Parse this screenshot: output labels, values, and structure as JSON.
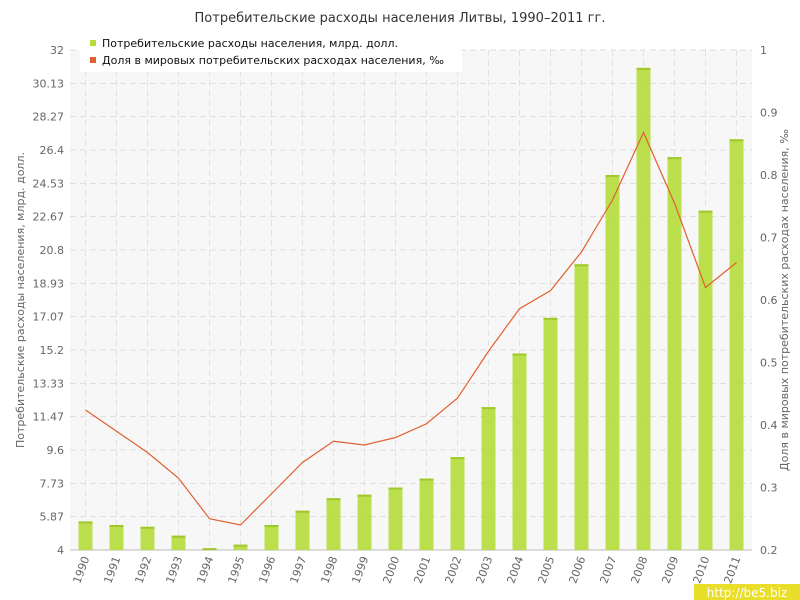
{
  "chart_data": {
    "type": "bar+line",
    "title": "Потребительские расходы населения Литвы, 1990–2011 гг.",
    "categories": [
      "1990",
      "1991",
      "1992",
      "1993",
      "1994",
      "1995",
      "1996",
      "1997",
      "1998",
      "1999",
      "2000",
      "2001",
      "2002",
      "2003",
      "2004",
      "2005",
      "2006",
      "2007",
      "2008",
      "2009",
      "2010",
      "2011"
    ],
    "series": [
      {
        "name": "Потребительские расходы населения, млрд. долл.",
        "kind": "bar",
        "axis": "left",
        "color": "#b5dc3a",
        "values": [
          5.6,
          5.4,
          5.3,
          4.8,
          4.1,
          4.3,
          5.4,
          6.2,
          6.9,
          7.1,
          7.5,
          8.0,
          9.2,
          12.0,
          15.0,
          17.0,
          20.0,
          25.0,
          31.0,
          26.0,
          23.0,
          27.0
        ]
      },
      {
        "name": "Доля в мировых потребительских расходах населения, ‰",
        "kind": "line",
        "axis": "right",
        "color": "#e06030",
        "values": [
          0.424,
          0.39,
          0.356,
          0.315,
          0.25,
          0.24,
          0.29,
          0.34,
          0.374,
          0.368,
          0.38,
          0.402,
          0.443,
          0.518,
          0.586,
          0.615,
          0.677,
          0.76,
          0.868,
          0.755,
          0.62,
          0.66
        ]
      }
    ],
    "ylabel": "Потребительские расходы населения, млрд. долл.",
    "y2label": "Доля в мировых потребительских расходах населения, ‰",
    "ylim": [
      4,
      32
    ],
    "y2lim": [
      0.2,
      1
    ],
    "yticks": [
      "4",
      "5.87",
      "7.73",
      "9.6",
      "11.47",
      "13.33",
      "15.2",
      "17.07",
      "18.93",
      "20.8",
      "22.67",
      "24.53",
      "26.4",
      "28.27",
      "30.13",
      "32"
    ],
    "y2ticks": [
      "0.2",
      "0.3",
      "0.4",
      "0.5",
      "0.6",
      "0.7",
      "0.8",
      "0.9",
      "1"
    ],
    "grid": true,
    "legend": "top-left"
  },
  "watermark": "http://be5.biz"
}
